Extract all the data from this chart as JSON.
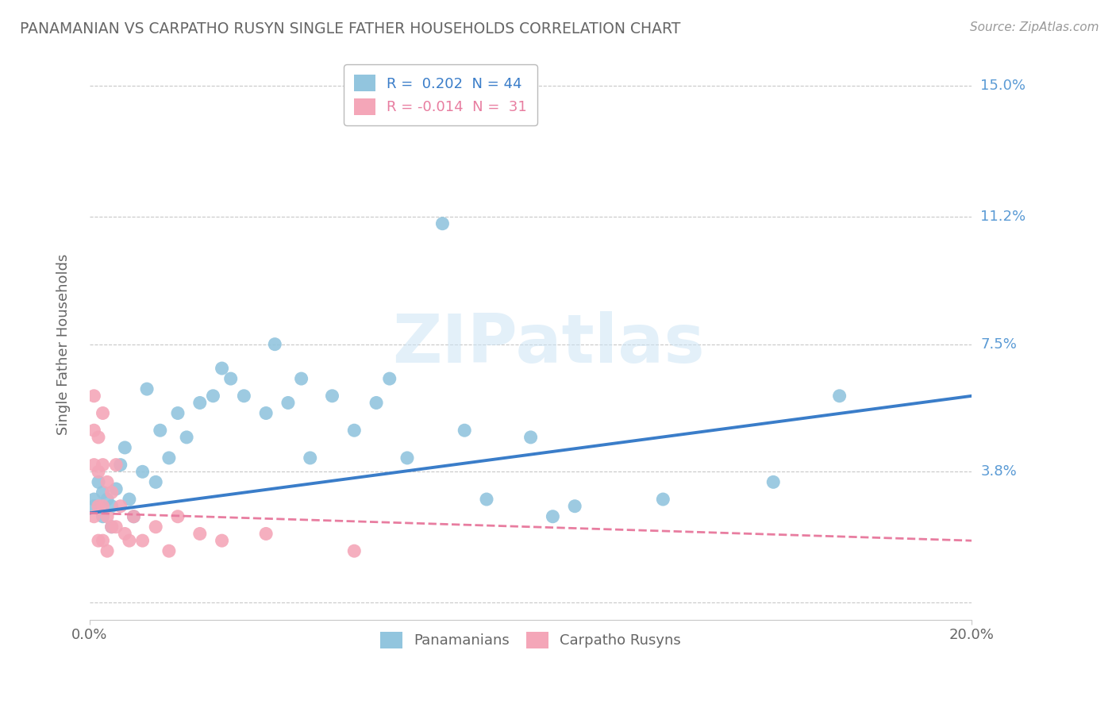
{
  "title": "PANAMANIAN VS CARPATHO RUSYN SINGLE FATHER HOUSEHOLDS CORRELATION CHART",
  "source": "Source: ZipAtlas.com",
  "ylabel": "Single Father Households",
  "xlim": [
    0.0,
    0.2
  ],
  "ylim": [
    -0.005,
    0.155
  ],
  "ytick_vals": [
    0.0,
    0.038,
    0.075,
    0.112,
    0.15
  ],
  "ytick_labels_right": [
    "",
    "3.8%",
    "7.5%",
    "11.2%",
    "15.0%"
  ],
  "xtick_vals": [
    0.0,
    0.2
  ],
  "xtick_labels": [
    "0.0%",
    "20.0%"
  ],
  "watermark": "ZIPatlas",
  "legend_r1_label": "R =  0.202  N = 44",
  "legend_r2_label": "R = -0.014  N =  31",
  "blue_scatter_color": "#92c5de",
  "pink_scatter_color": "#f4a6b8",
  "blue_line_color": "#3a7dc9",
  "pink_line_color": "#e87da0",
  "background_color": "#ffffff",
  "grid_color": "#c8c8c8",
  "title_color": "#666666",
  "right_label_color": "#5b9bd5",
  "bottom_label_color": "#666666",
  "pan_x": [
    0.001,
    0.001,
    0.002,
    0.003,
    0.003,
    0.004,
    0.005,
    0.005,
    0.006,
    0.007,
    0.008,
    0.009,
    0.01,
    0.012,
    0.013,
    0.015,
    0.016,
    0.018,
    0.02,
    0.022,
    0.025,
    0.028,
    0.03,
    0.032,
    0.035,
    0.04,
    0.042,
    0.045,
    0.048,
    0.05,
    0.055,
    0.06,
    0.065,
    0.068,
    0.072,
    0.08,
    0.085,
    0.09,
    0.1,
    0.105,
    0.11,
    0.13,
    0.155,
    0.17
  ],
  "pan_y": [
    0.028,
    0.03,
    0.035,
    0.025,
    0.032,
    0.03,
    0.028,
    0.022,
    0.033,
    0.04,
    0.045,
    0.03,
    0.025,
    0.038,
    0.062,
    0.035,
    0.05,
    0.042,
    0.055,
    0.048,
    0.058,
    0.06,
    0.068,
    0.065,
    0.06,
    0.055,
    0.075,
    0.058,
    0.065,
    0.042,
    0.06,
    0.05,
    0.058,
    0.065,
    0.042,
    0.11,
    0.05,
    0.03,
    0.048,
    0.025,
    0.028,
    0.03,
    0.035,
    0.06
  ],
  "rus_x": [
    0.001,
    0.001,
    0.001,
    0.001,
    0.002,
    0.002,
    0.002,
    0.002,
    0.003,
    0.003,
    0.003,
    0.003,
    0.004,
    0.004,
    0.004,
    0.005,
    0.005,
    0.006,
    0.006,
    0.007,
    0.008,
    0.009,
    0.01,
    0.012,
    0.015,
    0.018,
    0.02,
    0.025,
    0.03,
    0.04,
    0.06
  ],
  "rus_y": [
    0.06,
    0.05,
    0.04,
    0.025,
    0.048,
    0.038,
    0.028,
    0.018,
    0.055,
    0.04,
    0.028,
    0.018,
    0.035,
    0.025,
    0.015,
    0.032,
    0.022,
    0.04,
    0.022,
    0.028,
    0.02,
    0.018,
    0.025,
    0.018,
    0.022,
    0.015,
    0.025,
    0.02,
    0.018,
    0.02,
    0.015
  ],
  "blue_line_x0": 0.0,
  "blue_line_y0": 0.026,
  "blue_line_x1": 0.2,
  "blue_line_y1": 0.06,
  "pink_line_x0": 0.0,
  "pink_line_y0": 0.026,
  "pink_line_x1": 0.2,
  "pink_line_y1": 0.018
}
